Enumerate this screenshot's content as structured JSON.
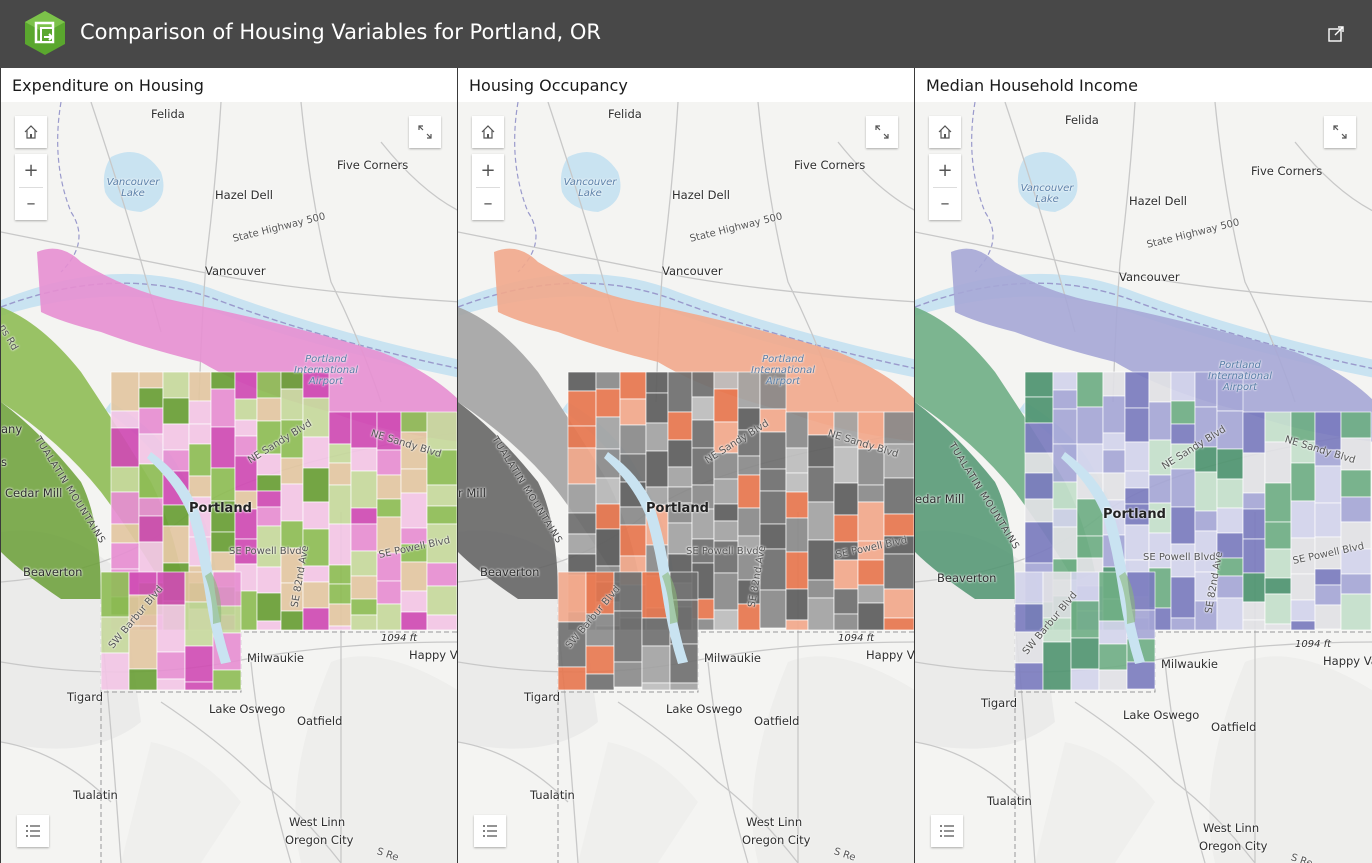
{
  "app": {
    "title": "Comparison of Housing Variables for Portland, OR",
    "logo_icon": "app-logo-icon",
    "share_icon": "share-icon",
    "accent": "#5aa72e"
  },
  "panels": [
    {
      "title": "Expenditure on Housing",
      "palette": [
        "#d04bb4",
        "#e78fd2",
        "#f3c6e6",
        "#c7d99d",
        "#8fbd55",
        "#6a9f36",
        "#e3c7a2"
      ],
      "labels": {
        "felida": "Felida",
        "five_corners": "Five Corners",
        "hazel_dell": "Hazel Dell",
        "vancouver_lake": "Vancouver Lake",
        "highway": "State Highway 500",
        "vancouver": "Vancouver",
        "airport": "Portland International Airport",
        "ne_sandy": "NE Sandy Blvd",
        "ne_sandy2": "NE Sandy Blvd",
        "mountains": "TUALATIN MOUNTAINS",
        "cedar_mill": "Cedar Mill",
        "portland": "Portland",
        "se_powell": "SE Powell Blvd",
        "se_powell2": "SE Powell Blvd",
        "beaverton": "Beaverton",
        "se82": "SE 82nd Ave",
        "elev": "1094 ft",
        "milwaukie": "Milwaukie",
        "happy_valley": "Happy V",
        "tigard": "Tigard",
        "lake_oswego": "Lake Oswego",
        "oatfield": "Oatfield",
        "barbur": "SW Barbur Blvd",
        "tualatin": "Tualatin",
        "west_linn": "West Linn",
        "oregon_city": "Oregon City",
        "edge_any": "any",
        "edge_s": "s",
        "edge_rd": "ns Rd",
        "s_re": "S Re"
      }
    },
    {
      "title": "Housing Occupancy",
      "palette": [
        "#e8774f",
        "#f2a98c",
        "#6f6f6f",
        "#8a8a8a",
        "#a3a3a3",
        "#5e5e5e",
        "#bdbdbd"
      ],
      "labels": {
        "felida": "Felida",
        "five_corners": "Five Corners",
        "hazel_dell": "Hazel Dell",
        "vancouver_lake": "Vancouver Lake",
        "highway": "State Highway 500",
        "vancouver": "Vancouver",
        "airport": "Portland International Airport",
        "ne_sandy": "NE Sandy Blvd",
        "ne_sandy2": "NE Sandy Blvd",
        "mountains": "TUALATIN MOUNTAINS",
        "cedar_mill": "r Mill",
        "portland": "Portland",
        "se_powell": "SE Powell Blvd",
        "se_powell2": "SE Powell Blvd",
        "beaverton": "Beaverton",
        "se82": "SE 82nd Ave",
        "elev": "1094 ft",
        "milwaukie": "Milwaukie",
        "happy_valley": "Happy Valley",
        "tigard": "Tigard",
        "lake_oswego": "Lake Oswego",
        "oatfield": "Oatfield",
        "barbur": "SW Barbur Blvd",
        "tualatin": "Tualatin",
        "west_linn": "West Linn",
        "oregon_city": "Oregon City",
        "edge_any": "",
        "edge_s": "",
        "edge_rd": "",
        "s_re": "S Re"
      }
    },
    {
      "title": "Median Household Income",
      "palette": [
        "#7b7cbf",
        "#a6a7d6",
        "#d3d4ec",
        "#c5e0cc",
        "#6fae85",
        "#4f9470",
        "#e2e2e6"
      ],
      "labels": {
        "felida": "Felida",
        "five_corners": "Five Corners",
        "hazel_dell": "Hazel Dell",
        "vancouver_lake": "Vancouver Lake",
        "highway": "State Highway 500",
        "vancouver": "Vancouver",
        "airport": "Portland International Airport",
        "ne_sandy": "NE Sandy Blvd",
        "ne_sandy2": "NE Sandy Blvd",
        "mountains": "TUALATIN MOUNTAINS",
        "cedar_mill": "edar Mill",
        "portland": "Portland",
        "se_powell": "SE Powell Blvd",
        "se_powell2": "SE Powell Blvd",
        "beaverton": "Beaverton",
        "se82": "SE 82nd Ave",
        "elev": "1094 ft",
        "milwaukie": "Milwaukie",
        "happy_valley": "Happy Vall",
        "tigard": "Tigard",
        "lake_oswego": "Lake Oswego",
        "oatfield": "Oatfield",
        "barbur": "SW Barbur Blvd",
        "tualatin": "Tualatin",
        "west_linn": "West Linn",
        "oregon_city": "Oregon City",
        "edge_any": "",
        "edge_s": "",
        "edge_rd": "",
        "s_re": "S Re"
      }
    }
  ],
  "controls": {
    "home_icon": "home-icon",
    "zoom_in": "+",
    "zoom_out": "–",
    "expand_icon": "expand-icon",
    "legend_icon": "legend-list-icon"
  }
}
